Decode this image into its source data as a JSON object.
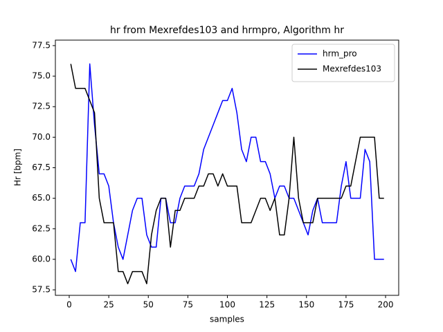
{
  "chart_data": {
    "type": "line",
    "title": "hr from Mexrefdes103 and hrmpro, Algorithm hr",
    "xlabel": "samples",
    "ylabel": "Hr [bpm]",
    "x": [
      1,
      4,
      7,
      10,
      13,
      16,
      19,
      22,
      25,
      28,
      31,
      34,
      37,
      40,
      43,
      46,
      49,
      52,
      55,
      58,
      61,
      64,
      67,
      70,
      73,
      76,
      79,
      82,
      85,
      88,
      91,
      94,
      97,
      100,
      103,
      106,
      109,
      112,
      115,
      118,
      121,
      124,
      127,
      130,
      133,
      136,
      139,
      142,
      145,
      148,
      151,
      154,
      157,
      160,
      163,
      166,
      169,
      172,
      175,
      178,
      181,
      184,
      187,
      190,
      193,
      196,
      199
    ],
    "series": [
      {
        "name": "hrm_pro",
        "color": "#0000ff",
        "values": [
          60,
          59,
          63,
          63,
          76,
          71,
          67,
          67,
          66,
          63,
          61,
          60,
          62,
          64,
          65,
          65,
          62,
          61,
          61,
          65,
          65,
          63,
          63,
          65,
          66,
          66,
          66,
          67,
          69,
          70,
          71,
          72,
          73,
          73,
          74,
          72,
          69,
          68,
          70,
          70,
          68,
          68,
          67,
          65,
          66,
          66,
          65,
          65,
          64,
          63,
          62,
          64,
          65,
          63,
          63,
          63,
          63,
          66,
          68,
          65,
          65,
          65,
          69,
          68,
          60,
          60,
          60
        ]
      },
      {
        "name": "Mexrefdes103",
        "color": "#000000",
        "values": [
          76,
          74,
          74,
          74,
          73,
          72,
          65,
          63,
          63,
          63,
          59,
          59,
          58,
          59,
          59,
          59,
          58,
          62,
          64,
          65,
          65,
          61,
          64,
          64,
          65,
          65,
          65,
          66,
          66,
          67,
          67,
          66,
          67,
          66,
          66,
          66,
          63,
          63,
          63,
          64,
          65,
          65,
          64,
          65,
          62,
          62,
          65,
          70,
          65,
          63,
          63,
          63,
          65,
          65,
          65,
          65,
          65,
          65,
          66,
          66,
          68,
          70,
          70,
          70,
          70,
          65,
          65
        ]
      }
    ],
    "xlim": [
      -8.75,
      208.3
    ],
    "xticks": [
      0,
      25,
      50,
      75,
      100,
      125,
      150,
      175,
      200
    ],
    "ylim": [
      57.05,
      77.95
    ],
    "yticks": [
      {
        "value": 57.5,
        "label": "57.5"
      },
      {
        "value": 60,
        "label": "60.0"
      },
      {
        "value": 62.5,
        "label": "62.5"
      },
      {
        "value": 65,
        "label": "65.0"
      },
      {
        "value": 67.5,
        "label": "67.5"
      },
      {
        "value": 70,
        "label": "70.0"
      },
      {
        "value": 72.5,
        "label": "72.5"
      },
      {
        "value": 75,
        "label": "75.0"
      },
      {
        "value": 77.5,
        "label": "77.5"
      }
    ],
    "legend": "upper right"
  }
}
